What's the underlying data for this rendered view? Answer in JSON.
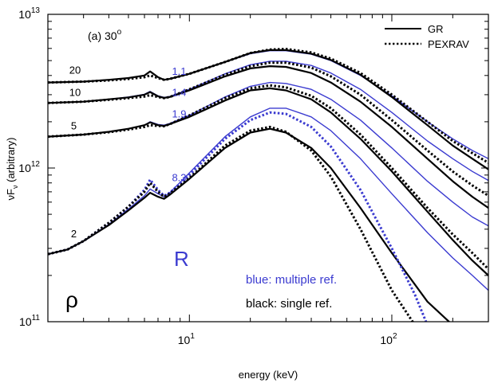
{
  "chart_data": {
    "type": "line",
    "panel_label": "(a) 30",
    "panel_label_degree": "o",
    "xlabel": "energy (keV)",
    "ylabel_main": "νF",
    "ylabel_sub": "ν",
    "ylabel_tail": " (arbitrary)",
    "xscale": "log",
    "yscale": "log",
    "xlim": [
      2,
      300
    ],
    "ylim": [
      100000000000.0,
      10000000000000.0
    ],
    "x_ticks": [
      {
        "value": 10,
        "base": "10",
        "exp": "1"
      },
      {
        "value": 100,
        "base": "10",
        "exp": "2"
      }
    ],
    "y_ticks": [
      {
        "value": 100000000000.0,
        "base": "10",
        "exp": "11"
      },
      {
        "value": 1000000000000.0,
        "base": "10",
        "exp": "12"
      },
      {
        "value": 10000000000000.0,
        "base": "10",
        "exp": "13"
      }
    ],
    "legend": {
      "placement": "top-right",
      "entries": [
        {
          "label": "GR",
          "style": "solid"
        },
        {
          "label": "PEXRAV",
          "style": "dotted"
        }
      ]
    },
    "colors": {
      "blue": "#3b3bd0",
      "black": "#000000"
    },
    "curve_labels": [
      {
        "text": "20",
        "x": 2.55,
        "y": 4100000000000.0
      },
      {
        "text": "10",
        "x": 2.55,
        "y": 2950000000000.0
      },
      {
        "text": "5",
        "x": 2.6,
        "y": 1780000000000.0
      },
      {
        "text": "2",
        "x": 2.6,
        "y": 355000000000.0
      }
    ],
    "R_values": [
      {
        "text": "1.1",
        "x": 8.2,
        "y": 4050000000000.0
      },
      {
        "text": "1.4",
        "x": 8.2,
        "y": 2950000000000.0
      },
      {
        "text": "1.9",
        "x": 8.2,
        "y": 2130000000000.0
      },
      {
        "text": "8.3",
        "x": 8.2,
        "y": 820000000000.0
      }
    ],
    "annotations": {
      "R_symbol": "R",
      "rho_symbol": "ρ",
      "blue_note": "blue: multiple ref.",
      "black_note": "black: single ref."
    },
    "series": [
      {
        "rho": 20,
        "reflection": "multiple",
        "model": "GR",
        "color": "blue",
        "style": "solid",
        "x": [
          2,
          3,
          4,
          5,
          6,
          6.4,
          7,
          7.5,
          8,
          10,
          15,
          20,
          25,
          30,
          40,
          50,
          70,
          100,
          150,
          200,
          250,
          300
        ],
        "y": [
          3600000000000.0,
          3650000000000.0,
          3750000000000.0,
          3850000000000.0,
          4000000000000.0,
          4250000000000.0,
          3900000000000.0,
          3750000000000.0,
          3800000000000.0,
          4100000000000.0,
          4900000000000.0,
          5550000000000.0,
          5800000000000.0,
          5800000000000.0,
          5500000000000.0,
          5000000000000.0,
          4000000000000.0,
          2950000000000.0,
          2000000000000.0,
          1550000000000.0,
          1300000000000.0,
          1150000000000.0
        ]
      },
      {
        "rho": 20,
        "reflection": "single",
        "model": "GR",
        "color": "black",
        "style": "solid",
        "x": [
          2,
          3,
          4,
          5,
          6,
          6.4,
          7,
          7.5,
          8,
          10,
          15,
          20,
          25,
          30,
          40,
          50,
          70,
          100,
          150,
          200,
          250,
          300
        ],
        "y": [
          3600000000000.0,
          3650000000000.0,
          3750000000000.0,
          3850000000000.0,
          4000000000000.0,
          4250000000000.0,
          3900000000000.0,
          3750000000000.0,
          3800000000000.0,
          4100000000000.0,
          4900000000000.0,
          5600000000000.0,
          5850000000000.0,
          5850000000000.0,
          5550000000000.0,
          5050000000000.0,
          4050000000000.0,
          2900000000000.0,
          1900000000000.0,
          1400000000000.0,
          1150000000000.0,
          980000000000.0
        ]
      },
      {
        "rho": 20,
        "reflection": "single",
        "model": "PEXRAV",
        "color": "black",
        "style": "dotted",
        "x": [
          2,
          3,
          4,
          5,
          6,
          6.4,
          7,
          7.5,
          8,
          10,
          15,
          20,
          25,
          30,
          40,
          50,
          70,
          100,
          150,
          200,
          250,
          300
        ],
        "y": [
          3600000000000.0,
          3650000000000.0,
          3720000000000.0,
          3800000000000.0,
          3900000000000.0,
          4000000000000.0,
          3850000000000.0,
          3750000000000.0,
          3800000000000.0,
          4100000000000.0,
          4900000000000.0,
          5600000000000.0,
          5900000000000.0,
          5950000000000.0,
          5650000000000.0,
          5150000000000.0,
          4150000000000.0,
          3000000000000.0,
          2000000000000.0,
          1500000000000.0,
          1250000000000.0,
          1080000000000.0
        ]
      },
      {
        "rho": 10,
        "reflection": "multiple",
        "model": "GR",
        "color": "blue",
        "style": "solid",
        "x": [
          2,
          3,
          4,
          5,
          6,
          6.4,
          7,
          7.5,
          8,
          10,
          15,
          20,
          25,
          30,
          40,
          50,
          70,
          100,
          150,
          200,
          250,
          300
        ],
        "y": [
          2650000000000.0,
          2700000000000.0,
          2800000000000.0,
          2900000000000.0,
          3020000000000.0,
          3150000000000.0,
          2950000000000.0,
          2880000000000.0,
          2920000000000.0,
          3250000000000.0,
          4100000000000.0,
          4700000000000.0,
          4950000000000.0,
          4950000000000.0,
          4650000000000.0,
          4150000000000.0,
          3250000000000.0,
          2300000000000.0,
          1500000000000.0,
          1150000000000.0,
          950000000000.0,
          830000000000.0
        ]
      },
      {
        "rho": 10,
        "reflection": "single",
        "model": "GR",
        "color": "black",
        "style": "solid",
        "x": [
          2,
          3,
          4,
          5,
          6,
          6.4,
          7,
          7.5,
          8,
          10,
          15,
          20,
          25,
          30,
          40,
          50,
          70,
          100,
          150,
          200,
          250,
          300
        ],
        "y": [
          2650000000000.0,
          2700000000000.0,
          2800000000000.0,
          2880000000000.0,
          3000000000000.0,
          3120000000000.0,
          2930000000000.0,
          2860000000000.0,
          2900000000000.0,
          3200000000000.0,
          3950000000000.0,
          4450000000000.0,
          4600000000000.0,
          4550000000000.0,
          4150000000000.0,
          3600000000000.0,
          2700000000000.0,
          1850000000000.0,
          1150000000000.0,
          820000000000.0,
          650000000000.0,
          550000000000.0
        ]
      },
      {
        "rho": 10,
        "reflection": "single",
        "model": "PEXRAV",
        "color": "black",
        "style": "dotted",
        "x": [
          2,
          3,
          4,
          5,
          6,
          6.4,
          7,
          7.5,
          8,
          10,
          15,
          20,
          25,
          30,
          40,
          50,
          70,
          100,
          150,
          200,
          250,
          300
        ],
        "y": [
          2650000000000.0,
          2700000000000.0,
          2780000000000.0,
          2850000000000.0,
          2920000000000.0,
          2980000000000.0,
          2900000000000.0,
          2850000000000.0,
          2900000000000.0,
          3250000000000.0,
          4050000000000.0,
          4600000000000.0,
          4850000000000.0,
          4850000000000.0,
          4500000000000.0,
          3950000000000.0,
          3000000000000.0,
          2050000000000.0,
          1300000000000.0,
          950000000000.0,
          770000000000.0,
          660000000000.0
        ]
      },
      {
        "rho": 5,
        "reflection": "multiple",
        "model": "GR",
        "color": "blue",
        "style": "solid",
        "x": [
          2,
          3,
          4,
          5,
          6,
          6.4,
          7,
          7.5,
          8,
          10,
          15,
          20,
          25,
          30,
          40,
          50,
          70,
          100,
          150,
          200,
          250,
          300
        ],
        "y": [
          1600000000000.0,
          1650000000000.0,
          1720000000000.0,
          1800000000000.0,
          1900000000000.0,
          2000000000000.0,
          1920000000000.0,
          1900000000000.0,
          1950000000000.0,
          2200000000000.0,
          2900000000000.0,
          3400000000000.0,
          3600000000000.0,
          3550000000000.0,
          3250000000000.0,
          2800000000000.0,
          2050000000000.0,
          1350000000000.0,
          820000000000.0,
          600000000000.0,
          480000000000.0,
          420000000000.0
        ]
      },
      {
        "rho": 5,
        "reflection": "single",
        "model": "GR",
        "color": "black",
        "style": "solid",
        "x": [
          2,
          3,
          4,
          5,
          6,
          6.4,
          7,
          7.5,
          8,
          10,
          15,
          20,
          25,
          30,
          40,
          50,
          70,
          100,
          150,
          200,
          250,
          300
        ],
        "y": [
          1600000000000.0,
          1650000000000.0,
          1720000000000.0,
          1800000000000.0,
          1900000000000.0,
          1980000000000.0,
          1900000000000.0,
          1880000000000.0,
          1930000000000.0,
          2150000000000.0,
          2750000000000.0,
          3200000000000.0,
          3300000000000.0,
          3200000000000.0,
          2800000000000.0,
          2300000000000.0,
          1550000000000.0,
          950000000000.0,
          520000000000.0,
          340000000000.0,
          250000000000.0,
          200000000000.0
        ]
      },
      {
        "rho": 5,
        "reflection": "single",
        "model": "PEXRAV",
        "color": "black",
        "style": "dotted",
        "x": [
          2,
          3,
          4,
          5,
          6,
          6.4,
          7,
          7.5,
          8,
          10,
          15,
          20,
          25,
          30,
          40,
          50,
          70,
          100,
          150,
          200,
          250,
          300
        ],
        "y": [
          1600000000000.0,
          1650000000000.0,
          1710000000000.0,
          1780000000000.0,
          1850000000000.0,
          1900000000000.0,
          1880000000000.0,
          1870000000000.0,
          1930000000000.0,
          2200000000000.0,
          2850000000000.0,
          3300000000000.0,
          3450000000000.0,
          3350000000000.0,
          2950000000000.0,
          2450000000000.0,
          1650000000000.0,
          1000000000000.0,
          550000000000.0,
          370000000000.0,
          280000000000.0,
          220000000000.0
        ]
      },
      {
        "rho": 2,
        "reflection": "multiple",
        "model": "GR",
        "color": "blue",
        "style": "solid",
        "x": [
          2,
          2.5,
          3,
          4,
          5,
          6,
          6.4,
          7,
          7.5,
          8,
          10,
          15,
          20,
          25,
          30,
          40,
          50,
          70,
          100,
          150,
          200,
          250,
          300
        ],
        "y": [
          275000000000.0,
          295000000000.0,
          335000000000.0,
          430000000000.0,
          540000000000.0,
          660000000000.0,
          730000000000.0,
          680000000000.0,
          650000000000.0,
          690000000000.0,
          930000000000.0,
          1600000000000.0,
          2150000000000.0,
          2450000000000.0,
          2450000000000.0,
          2150000000000.0,
          1750000000000.0,
          1150000000000.0,
          680000000000.0,
          380000000000.0,
          260000000000.0,
          200000000000.0,
          160000000000.0
        ]
      },
      {
        "rho": 2,
        "reflection": "single",
        "model": "GR",
        "color": "black",
        "style": "solid",
        "x": [
          2,
          2.5,
          3,
          4,
          5,
          6,
          6.4,
          7,
          7.5,
          8,
          10,
          15,
          20,
          25,
          30,
          40,
          50,
          70,
          100,
          150,
          200
        ],
        "y": [
          275000000000.0,
          295000000000.0,
          335000000000.0,
          425000000000.0,
          530000000000.0,
          640000000000.0,
          690000000000.0,
          650000000000.0,
          630000000000.0,
          670000000000.0,
          850000000000.0,
          1350000000000.0,
          1700000000000.0,
          1800000000000.0,
          1700000000000.0,
          1350000000000.0,
          1000000000000.0,
          550000000000.0,
          280000000000.0,
          135000000000.0,
          95000000000.0
        ]
      },
      {
        "rho": 2,
        "reflection": "multiple",
        "model": "PEXRAV",
        "color": "blue",
        "style": "dotted",
        "x": [
          2,
          2.5,
          3,
          4,
          5,
          6,
          6.4,
          7,
          7.5,
          8,
          10,
          15,
          20,
          25,
          30,
          40,
          50,
          70,
          100,
          130,
          150
        ],
        "y": [
          275000000000.0,
          295000000000.0,
          335000000000.0,
          440000000000.0,
          560000000000.0,
          720000000000.0,
          840000000000.0,
          720000000000.0,
          660000000000.0,
          690000000000.0,
          900000000000.0,
          1550000000000.0,
          2050000000000.0,
          2300000000000.0,
          2250000000000.0,
          1850000000000.0,
          1380000000000.0,
          720000000000.0,
          300000000000.0,
          150000000000.0,
          95000000000.0
        ]
      },
      {
        "rho": 2,
        "reflection": "single",
        "model": "PEXRAV",
        "color": "black",
        "style": "dotted",
        "x": [
          2,
          2.5,
          3,
          4,
          5,
          6,
          6.4,
          7,
          7.5,
          8,
          10,
          15,
          20,
          25,
          30,
          40,
          50,
          70,
          100,
          130
        ],
        "y": [
          275000000000.0,
          295000000000.0,
          335000000000.0,
          440000000000.0,
          560000000000.0,
          700000000000.0,
          800000000000.0,
          700000000000.0,
          650000000000.0,
          680000000000.0,
          860000000000.0,
          1400000000000.0,
          1750000000000.0,
          1850000000000.0,
          1720000000000.0,
          1300000000000.0,
          880000000000.0,
          400000000000.0,
          160000000000.0,
          95000000000.0
        ]
      }
    ]
  }
}
